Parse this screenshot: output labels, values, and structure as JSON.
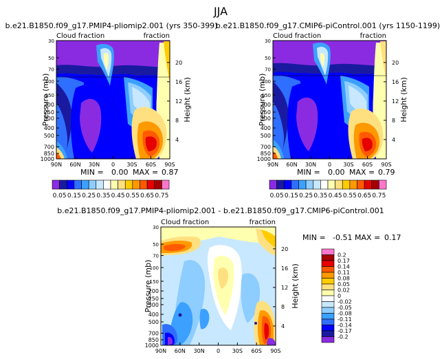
{
  "page_title": "JJA",
  "chart_data": [
    {
      "type": "heatmap",
      "title": "b.e21.B1850.f09_g17.PMIP4-pliomip2.001 (yrs 350-399)",
      "corner_left": "Cloud fraction",
      "corner_right": "fraction",
      "xlabel": "",
      "ylabel": "Pressure (mb)",
      "y2label": "Height (km)",
      "x_ticks": [
        "90N",
        "60N",
        "30N",
        "0",
        "30S",
        "60S",
        "90S"
      ],
      "y_ticks": [
        "30",
        "50",
        "70",
        "100",
        "150",
        "200",
        "250",
        "300",
        "400",
        "500",
        "700",
        "850",
        "1000"
      ],
      "y_ticks_labeled": [
        "30",
        "50",
        "70",
        "100",
        "150",
        "200",
        "250",
        "300",
        "400",
        "500",
        "700",
        "850",
        "1000"
      ],
      "height_ticks": [
        "20",
        "16",
        "12",
        "8",
        "4"
      ],
      "min_label": "MIN =",
      "min_value": "0.00",
      "max_label": "MAX =",
      "max_value": "0.87",
      "colorbar_levels": [
        "0.05",
        "0.1",
        "0.15",
        "0.2",
        "0.25",
        "0.3",
        "0.35",
        "0.4",
        "0.45",
        "0.5",
        "0.55",
        "0.6",
        "0.65",
        "0.7",
        "0.75"
      ],
      "colorbar_labels": [
        "0.05",
        "0.15",
        "0.25",
        "0.35",
        "0.45",
        "0.55",
        "0.65",
        "0.75"
      ],
      "colors": [
        "#8a2be2",
        "#1a1aa0",
        "#0000ff",
        "#2f6fff",
        "#3ca0ff",
        "#8ecdff",
        "#c8e8ff",
        "#ffffff",
        "#ffffb0",
        "#ffe080",
        "#ffcc00",
        "#ff9900",
        "#ff5a00",
        "#e60000",
        "#a40000",
        "#ff77cc"
      ]
    },
    {
      "type": "heatmap",
      "title": "b.e21.B1850.f09_g17.CMIP6-piControl.001 (yrs 1150-1199)",
      "corner_left": "Cloud fraction",
      "corner_right": "fraction",
      "xlabel": "",
      "ylabel": "Pressure (mb)",
      "y2label": "Height (km)",
      "x_ticks": [
        "90N",
        "60N",
        "30N",
        "0",
        "30S",
        "60S",
        "90S"
      ],
      "y_ticks_labeled": [
        "30",
        "50",
        "70",
        "100",
        "150",
        "200",
        "250",
        "300",
        "400",
        "500",
        "700",
        "850",
        "1000"
      ],
      "height_ticks": [
        "20",
        "16",
        "12",
        "8",
        "4"
      ],
      "min_label": "MIN =",
      "min_value": "0.00",
      "max_label": "MAX =",
      "max_value": "0.79",
      "colorbar_labels": [
        "0.05",
        "0.15",
        "0.25",
        "0.35",
        "0.45",
        "0.55",
        "0.65",
        "0.75"
      ]
    },
    {
      "type": "heatmap",
      "title": "b.e21.B1850.f09_g17.PMIP4-pliomip2.001 - b.e21.B1850.f09_g17.CMIP6-piControl.001",
      "corner_left": "Cloud fraction",
      "corner_right": "fraction",
      "xlabel": "",
      "ylabel": "Pressure (mb)",
      "y2label": "Height (km)",
      "x_ticks": [
        "90N",
        "60N",
        "30N",
        "0",
        "30S",
        "60S",
        "90S"
      ],
      "y_ticks_labeled": [
        "30",
        "50",
        "70",
        "100",
        "150",
        "200",
        "250",
        "300",
        "400",
        "500",
        "700",
        "850",
        "1000"
      ],
      "height_ticks": [
        "20",
        "16",
        "12",
        "8",
        "4"
      ],
      "min_label": "MIN =",
      "min_value": "-0.51",
      "max_label": "MAX =",
      "max_value": "0.17",
      "colorbar_labels": [
        "0.2",
        "0.17",
        "0.14",
        "0.11",
        "0.08",
        "0.05",
        "0.02",
        "0",
        "-0.02",
        "-0.05",
        "-0.08",
        "-0.11",
        "-0.14",
        "-0.17",
        "-0.2"
      ],
      "colors": [
        "#ff77cc",
        "#a40000",
        "#e60000",
        "#ff5a00",
        "#ff9900",
        "#ffcc00",
        "#ffe080",
        "#ffffb0",
        "#ffffff",
        "#c8e8ff",
        "#8ecdff",
        "#3ca0ff",
        "#2f6fff",
        "#0000ff",
        "#1a1aa0",
        "#8a2be2"
      ]
    }
  ]
}
